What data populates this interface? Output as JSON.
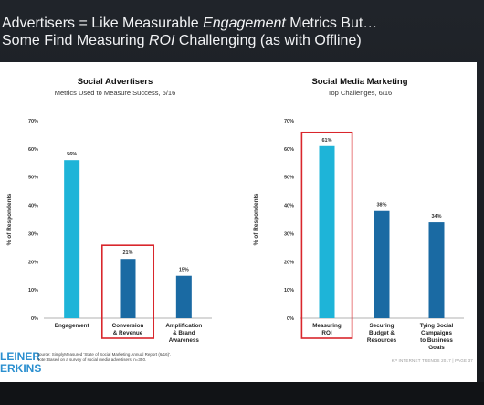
{
  "header": {
    "line1_a": "Advertisers = Like Measurable ",
    "line1_em": "Engagement",
    "line1_b": " Metrics But…",
    "line2_a": "Some Find Measuring ",
    "line2_em": "ROI",
    "line2_b": " Challenging (as with Offline)"
  },
  "chart_data": [
    {
      "type": "bar",
      "title": "Social Advertisers",
      "subtitle": "Metrics Used to Measure Success, 6/16",
      "ylabel": "% of Respondents",
      "ylim": [
        0,
        70
      ],
      "yticks": [
        "0%",
        "10%",
        "20%",
        "30%",
        "40%",
        "50%",
        "60%",
        "70%"
      ],
      "categories": [
        [
          "Engagement"
        ],
        [
          "Conversion",
          "& Revenue"
        ],
        [
          "Amplification",
          "& Brand",
          "Awareness"
        ]
      ],
      "values": [
        56,
        21,
        15
      ],
      "value_labels": [
        "56%",
        "21%",
        "15%"
      ],
      "colors": [
        "#1eb4d8",
        "#1a6aa3",
        "#1a6aa3"
      ],
      "highlight_index": 1,
      "highlight_color": "#d9262c",
      "grid": false
    },
    {
      "type": "bar",
      "title": "Social Media Marketing",
      "subtitle": "Top Challenges, 6/16",
      "ylabel": "% of Respondents",
      "ylim": [
        0,
        70
      ],
      "yticks": [
        "0%",
        "10%",
        "20%",
        "30%",
        "40%",
        "50%",
        "60%",
        "70%"
      ],
      "categories": [
        [
          "Measuring",
          "ROI"
        ],
        [
          "Securing",
          "Budget &",
          "Resources"
        ],
        [
          "Tying Social",
          "Campaigns",
          "to Business",
          "Goals"
        ]
      ],
      "values": [
        61,
        38,
        34
      ],
      "value_labels": [
        "61%",
        "38%",
        "34%"
      ],
      "colors": [
        "#1eb4d8",
        "#1a6aa3",
        "#1a6aa3"
      ],
      "highlight_index": 0,
      "highlight_color": "#d9262c",
      "grid": false
    }
  ],
  "footer": {
    "logo_line1": "LEINER",
    "logo_line2": "ERKINS",
    "source_line1": "Source: SimplyMeasured 'State of Social Marketing Annual Report (6/16)'.",
    "source_line2": "Note: Based on a survey of social media advertisers, n=350.",
    "trends": "KP INTERNET TRENDS 2017  |  PAGE 37"
  }
}
